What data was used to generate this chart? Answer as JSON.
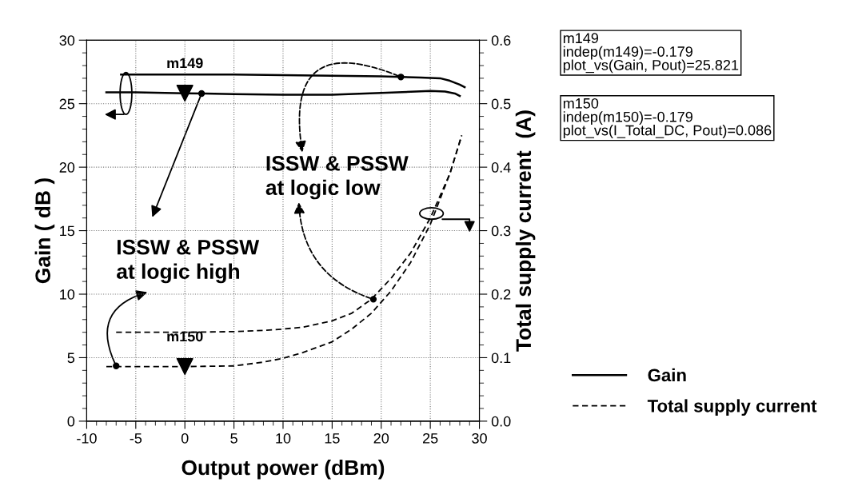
{
  "chart_data": {
    "type": "line",
    "xlabel": "Output power (dBm)",
    "ylabel": "Gain ( dB )",
    "y2label": "Total supply current  (A)",
    "xlim": [
      -10,
      30
    ],
    "xticks": [
      -10,
      -5,
      0,
      5,
      10,
      15,
      20,
      25,
      30
    ],
    "ylim": [
      0,
      30
    ],
    "yticks": [
      0,
      5,
      10,
      15,
      20,
      25,
      30
    ],
    "y2lim": [
      0,
      0.6
    ],
    "y2ticks": [
      {
        "value": 0,
        "label": "0.0"
      },
      0.1,
      0.2,
      0.3,
      0.4,
      0.5,
      0.6
    ],
    "grid": true,
    "legend": "right",
    "series": [
      {
        "name": "Gain",
        "color": "#000000",
        "line_style": "solid",
        "x": [
          -6.5,
          0,
          5,
          10,
          15,
          20,
          22,
          24,
          26,
          27,
          28,
          28.5
        ],
        "values": [
          27.3,
          27.3,
          27.3,
          27.25,
          27.2,
          27.15,
          27.1,
          27.05,
          27.0,
          26.8,
          26.5,
          26.3
        ]
      },
      {
        "color": "#000000",
        "line_style": "solid",
        "x": [
          -8,
          -5,
          0,
          2,
          5,
          10,
          15,
          20,
          25,
          26.5,
          27.5,
          28
        ],
        "values": [
          25.9,
          25.9,
          25.82,
          25.8,
          25.75,
          25.7,
          25.7,
          25.85,
          26.0,
          25.95,
          25.8,
          25.6
        ]
      },
      {
        "name": "Total supply current",
        "color": "#000000",
        "line_style": "dashed",
        "axis": "y2",
        "x": [
          -7,
          0,
          5,
          8,
          10,
          12,
          15,
          17,
          19,
          21,
          23,
          25,
          27,
          28.2
        ],
        "values": [
          0.14,
          0.14,
          0.141,
          0.143,
          0.145,
          0.148,
          0.158,
          0.17,
          0.192,
          0.225,
          0.265,
          0.32,
          0.39,
          0.45
        ]
      },
      {
        "color": "#000000",
        "line_style": "dashed",
        "axis": "y2",
        "x": [
          -8,
          -5,
          0,
          5,
          8,
          10,
          12,
          15,
          17,
          19,
          21,
          23,
          25,
          27,
          28.2
        ],
        "values": [
          0.086,
          0.086,
          0.086,
          0.087,
          0.093,
          0.099,
          0.108,
          0.125,
          0.145,
          0.17,
          0.205,
          0.25,
          0.31,
          0.39,
          0.45
        ]
      },
      {
        "type": "scatter",
        "color": "#000000",
        "marker": "triangle",
        "x": [
          0
        ],
        "values": [
          25.821
        ],
        "value_labels": [
          "m149"
        ]
      },
      {
        "type": "scatter",
        "color": "#000000",
        "marker": "triangle",
        "axis": "y2",
        "x": [
          0
        ],
        "values": [
          0.086
        ],
        "value_labels": [
          "m150"
        ]
      }
    ],
    "annotations": [
      {
        "text": "ISSW & PSSW\nat logic high",
        "x": 1.7,
        "y": 25.8
      },
      {
        "text": "ISSW & PSSW\nat logic low",
        "x": 22,
        "y": 27.1
      },
      "m149\nindep(m149)=-0.179\nplot_vs(Gain, Pout)=25.821",
      "m150\nindep(m150)=-0.179\nplot_vs(I_Total_DC, Pout)=0.086"
    ]
  }
}
